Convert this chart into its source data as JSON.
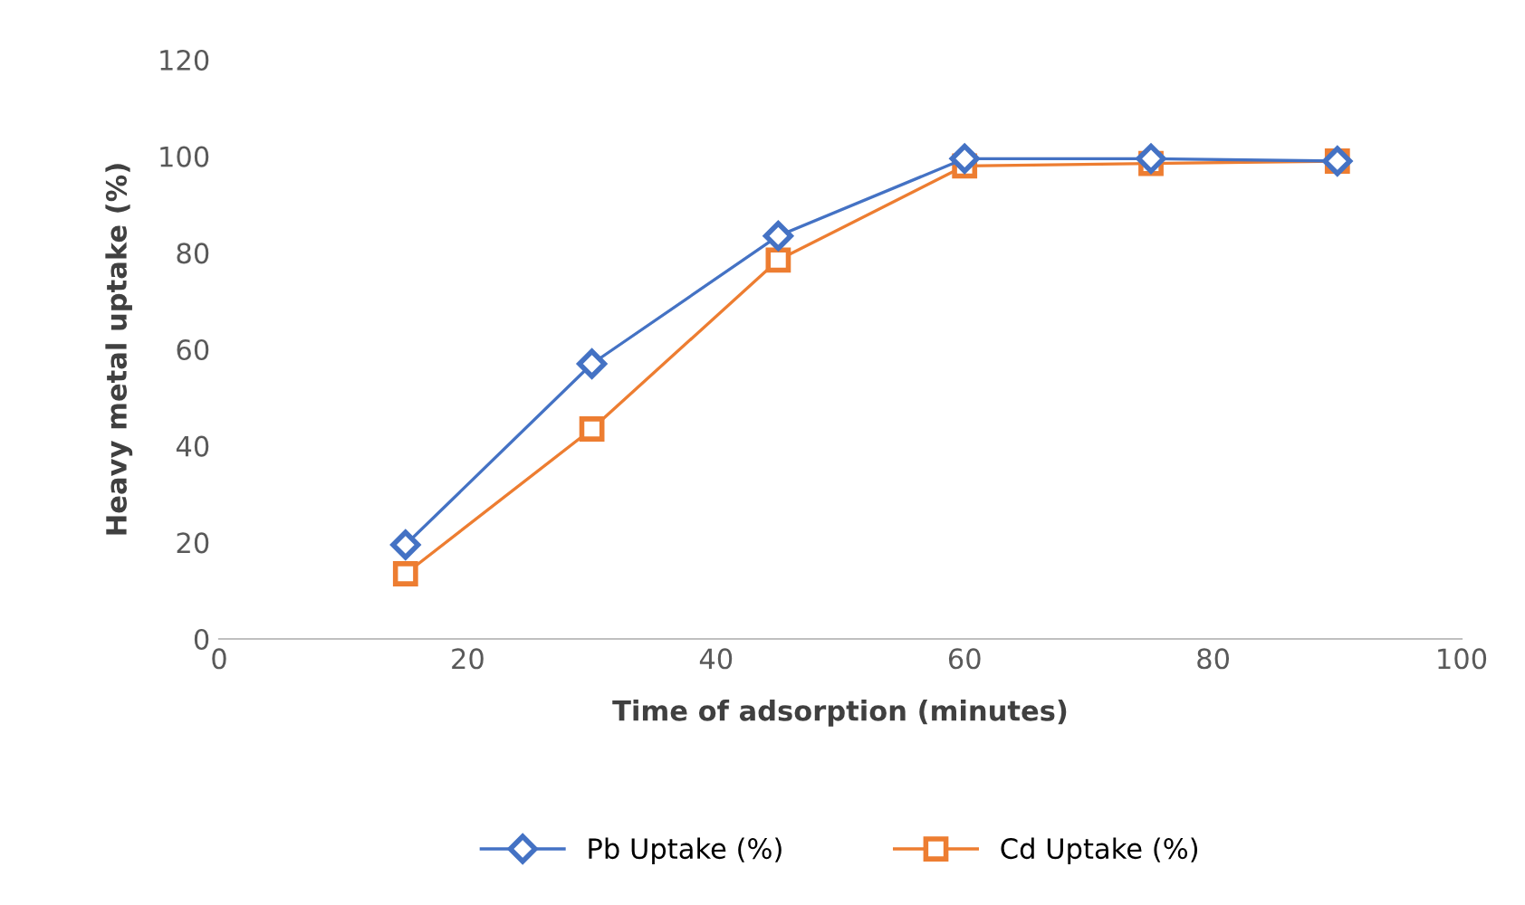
{
  "chart_data": {
    "type": "line",
    "xlabel": "Time of adsorption (minutes)",
    "ylabel": "Heavy metal uptake (%)",
    "x": [
      15,
      30,
      45,
      60,
      75,
      90
    ],
    "series": [
      {
        "name": "Pb Uptake (%)",
        "color": "#4472c4",
        "marker": "diamond",
        "values": [
          19.5,
          57,
          83.5,
          99.5,
          99.5,
          99
        ]
      },
      {
        "name": "Cd Uptake (%)",
        "color": "#ed7d31",
        "marker": "square",
        "values": [
          13.5,
          43.5,
          78.5,
          98,
          98.5,
          99
        ]
      }
    ],
    "xlim": [
      0,
      100
    ],
    "xticks": [
      0,
      20,
      40,
      60,
      80,
      100
    ],
    "ylim": [
      0,
      120
    ],
    "yticks": [
      0,
      20,
      40,
      60,
      80,
      100,
      120
    ],
    "grid": false,
    "legend": "bottom",
    "line_style": "solid"
  }
}
